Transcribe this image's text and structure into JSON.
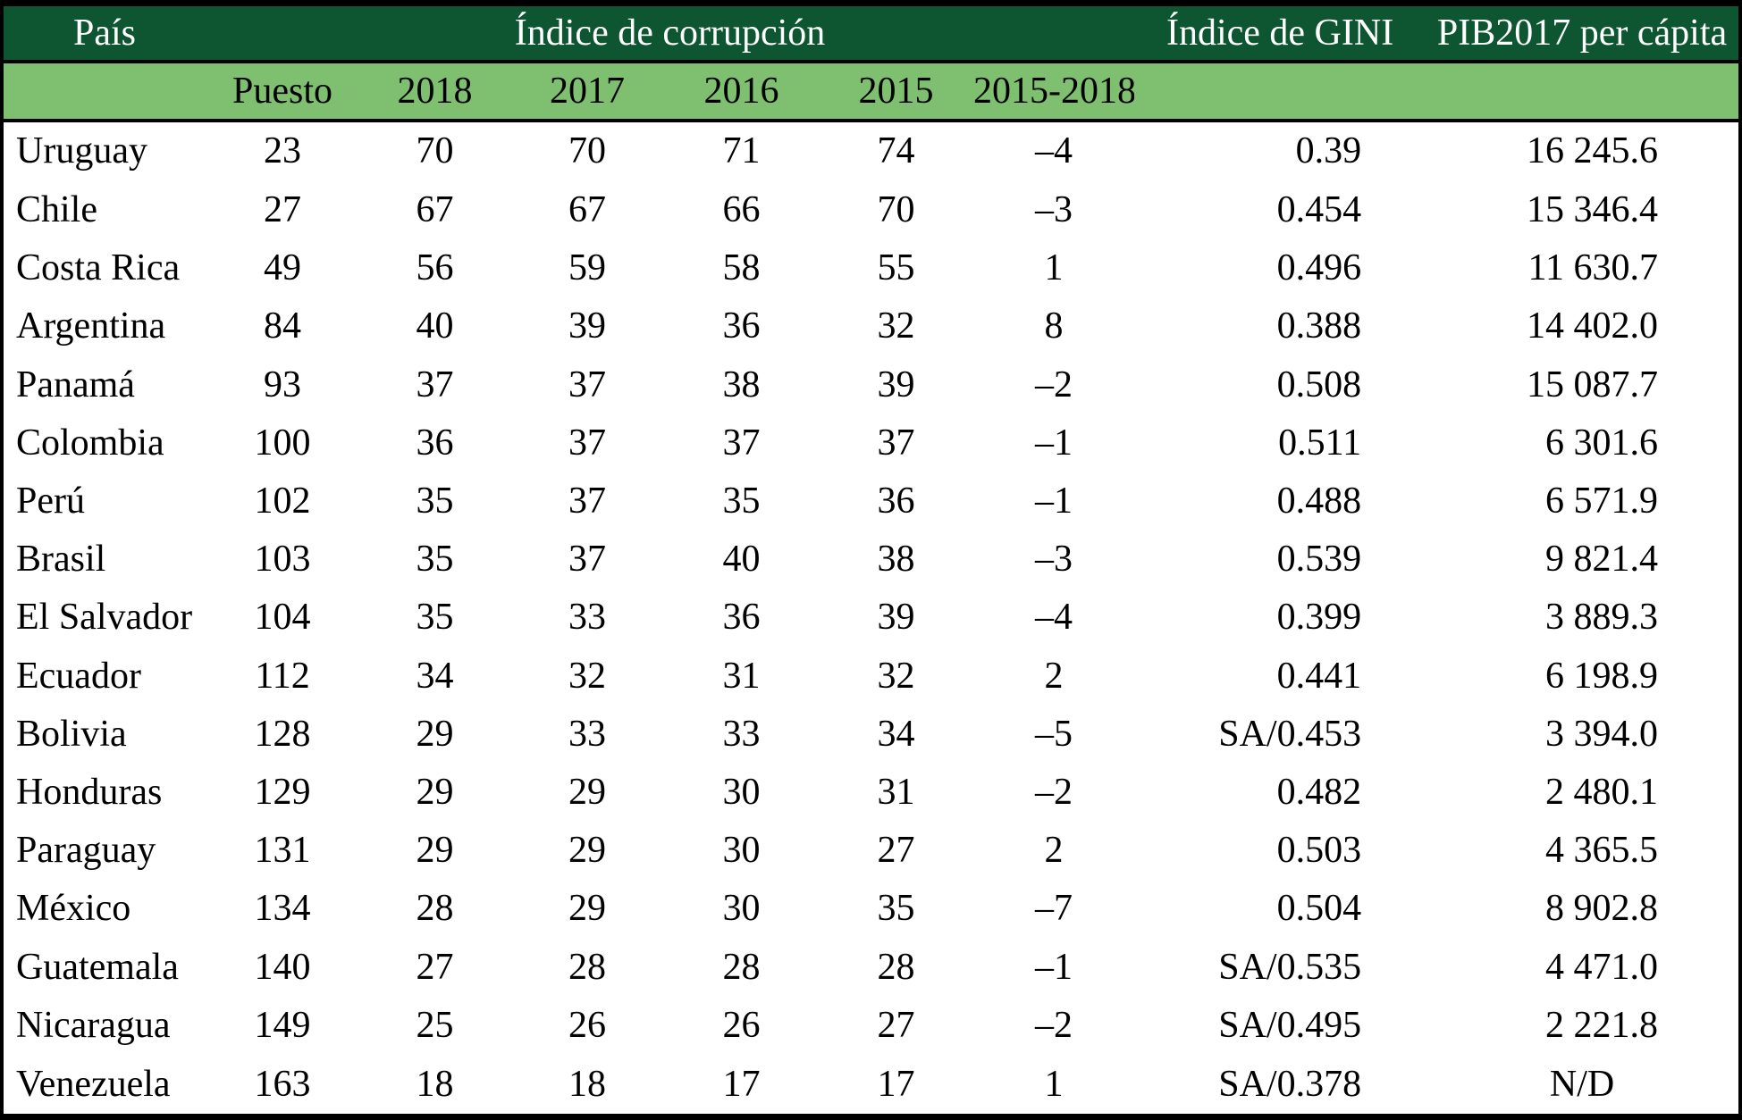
{
  "chart_data": {
    "type": "table",
    "header_groups": {
      "pais": "País",
      "corrupcion": "Índice de corrupción",
      "gini": "Índice de GINI",
      "pib": "PIB2017 per cápita"
    },
    "subheader": {
      "puesto": "Puesto",
      "y2018": "2018",
      "y2017": "2017",
      "y2016": "2016",
      "y2015": "2015",
      "range": "2015-2018"
    },
    "rows": [
      {
        "country": "Uruguay",
        "puesto": "23",
        "y2018": "70",
        "y2017": "70",
        "y2016": "71",
        "y2015": "74",
        "diff": "–4",
        "gini": "0.39",
        "pib": "16 245.6"
      },
      {
        "country": "Chile",
        "puesto": "27",
        "y2018": "67",
        "y2017": "67",
        "y2016": "66",
        "y2015": "70",
        "diff": "–3",
        "gini": "0.454",
        "pib": "15 346.4"
      },
      {
        "country": "Costa Rica",
        "puesto": "49",
        "y2018": "56",
        "y2017": "59",
        "y2016": "58",
        "y2015": "55",
        "diff": "1",
        "gini": "0.496",
        "pib": "11 630.7"
      },
      {
        "country": "Argentina",
        "puesto": "84",
        "y2018": "40",
        "y2017": "39",
        "y2016": "36",
        "y2015": "32",
        "diff": "8",
        "gini": "0.388",
        "pib": "14 402.0"
      },
      {
        "country": "Panamá",
        "puesto": "93",
        "y2018": "37",
        "y2017": "37",
        "y2016": "38",
        "y2015": "39",
        "diff": "–2",
        "gini": "0.508",
        "pib": "15 087.7"
      },
      {
        "country": "Colombia",
        "puesto": "100",
        "y2018": "36",
        "y2017": "37",
        "y2016": "37",
        "y2015": "37",
        "diff": "–1",
        "gini": "0.511",
        "pib": "6 301.6"
      },
      {
        "country": "Perú",
        "puesto": "102",
        "y2018": "35",
        "y2017": "37",
        "y2016": "35",
        "y2015": "36",
        "diff": "–1",
        "gini": "0.488",
        "pib": "6 571.9"
      },
      {
        "country": "Brasil",
        "puesto": "103",
        "y2018": "35",
        "y2017": "37",
        "y2016": "40",
        "y2015": "38",
        "diff": "–3",
        "gini": "0.539",
        "pib": "9 821.4"
      },
      {
        "country": "El Salvador",
        "puesto": "104",
        "y2018": "35",
        "y2017": "33",
        "y2016": "36",
        "y2015": "39",
        "diff": "–4",
        "gini": "0.399",
        "pib": "3 889.3"
      },
      {
        "country": "Ecuador",
        "puesto": "112",
        "y2018": "34",
        "y2017": "32",
        "y2016": "31",
        "y2015": "32",
        "diff": "2",
        "gini": "0.441",
        "pib": "6 198.9"
      },
      {
        "country": "Bolivia",
        "puesto": "128",
        "y2018": "29",
        "y2017": "33",
        "y2016": "33",
        "y2015": "34",
        "diff": "–5",
        "gini": "SA/0.453",
        "pib": "3 394.0"
      },
      {
        "country": "Honduras",
        "puesto": "129",
        "y2018": "29",
        "y2017": "29",
        "y2016": "30",
        "y2015": "31",
        "diff": "–2",
        "gini": "0.482",
        "pib": "2 480.1"
      },
      {
        "country": "Paraguay",
        "puesto": "131",
        "y2018": "29",
        "y2017": "29",
        "y2016": "30",
        "y2015": "27",
        "diff": "2",
        "gini": "0.503",
        "pib": "4 365.5"
      },
      {
        "country": "México",
        "puesto": "134",
        "y2018": "28",
        "y2017": "29",
        "y2016": "30",
        "y2015": "35",
        "diff": "–7",
        "gini": "0.504",
        "pib": "8 902.8"
      },
      {
        "country": "Guatemala",
        "puesto": "140",
        "y2018": "27",
        "y2017": "28",
        "y2016": "28",
        "y2015": "28",
        "diff": "–1",
        "gini": "SA/0.535",
        "pib": "4 471.0"
      },
      {
        "country": "Nicaragua",
        "puesto": "149",
        "y2018": "25",
        "y2017": "26",
        "y2016": "26",
        "y2015": "27",
        "diff": "–2",
        "gini": "SA/0.495",
        "pib": "2 221.8"
      },
      {
        "country": "Venezuela",
        "puesto": "163",
        "y2018": "18",
        "y2017": "18",
        "y2016": "17",
        "y2015": "17",
        "diff": "1",
        "gini": "SA/0.378",
        "pib": "N/D"
      }
    ],
    "layout": {
      "grid": "off",
      "header_rows": 2,
      "not_available_label": "N/D"
    }
  },
  "colors": {
    "header_dark_green": "#0e5531",
    "header_light_green": "#7ec06f",
    "border_black": "#000000",
    "header_text": "#ffffff",
    "body_text": "#000000"
  }
}
